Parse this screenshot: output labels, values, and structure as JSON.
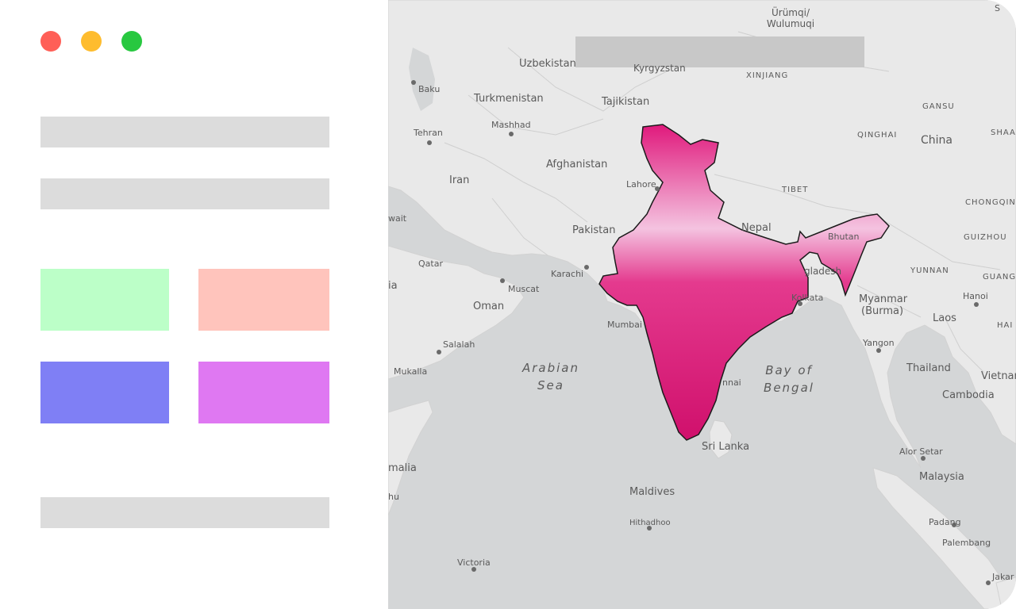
{
  "window": {
    "controls": [
      {
        "name": "close",
        "color": "#ff5f57"
      },
      {
        "name": "minimize",
        "color": "#febc2e"
      },
      {
        "name": "maximize",
        "color": "#28c840"
      }
    ]
  },
  "sidebar": {
    "placeholder_color": "#dcdcdc",
    "legend_tiles": [
      {
        "color": "#bcffc8"
      },
      {
        "color": "#ffc4bc"
      },
      {
        "color": "#7f7ff5"
      },
      {
        "color": "#df78f2"
      }
    ]
  },
  "map": {
    "search_bar_color": "#c8c8c8",
    "highlight_color": "#e0197c",
    "places": {
      "urumqi": "Ürümqi/\nWulumuqi",
      "uzbekistan": "Uzbekistan",
      "kyrgyzstan": "Kyrgyzstan",
      "xinjiang": "XINJIANG",
      "baku": "Baku",
      "turkmenistan": "Turkmenistan",
      "tajikistan": "Tajikistan",
      "gansu": "GANSU",
      "mashhad": "Mashhad",
      "tehran": "Tehran",
      "qinghai": "QINGHAI",
      "china": "China",
      "shaa": "SHAA",
      "afghanistan": "Afghanistan",
      "iran": "Iran",
      "lahore": "Lahore",
      "tibet": "TIBET",
      "chongqing": "CHONGQIN",
      "kuwait": "wait",
      "pakistan": "Pakistan",
      "nepal": "Nepal",
      "bhutan": "Bhutan",
      "guizhou": "GUIZHOU",
      "qatar": "Qatar",
      "yunnan": "YUNNAN",
      "karachi": "Karachi",
      "bangladesh": "gladesh",
      "guang": "GUANG",
      "saudi": "ia",
      "muscat": "Muscat",
      "kolkata": "Kolkata",
      "oman": "Oman",
      "myanmar": "Myanmar\n(Burma)",
      "hanoi": "Hanoi",
      "mumbai": "Mumbai",
      "laos": "Laos",
      "hai": "HAI",
      "salalah": "Salalah",
      "yangon": "Yangon",
      "arabian_sea": "Arabian\nSea",
      "bay_of_bengal": "Bay of\nBengal",
      "mukalla": "Mukalla",
      "thailand": "Thailand",
      "vietnam": "Vietnar",
      "chennai": "nnai",
      "cambodia": "Cambodia",
      "sri_lanka": "Sri Lanka",
      "alor_setar": "Alor Setar",
      "somalia": "malia",
      "malaysia": "Malaysia",
      "maldives": "Maldives",
      "mogadishu": "hu",
      "padang": "Padang",
      "hithadhoo": "Hithadhoo",
      "palembang": "Palembang",
      "victoria": "Victoria",
      "jakarta": "Jakar",
      "s_corner": "S"
    }
  }
}
